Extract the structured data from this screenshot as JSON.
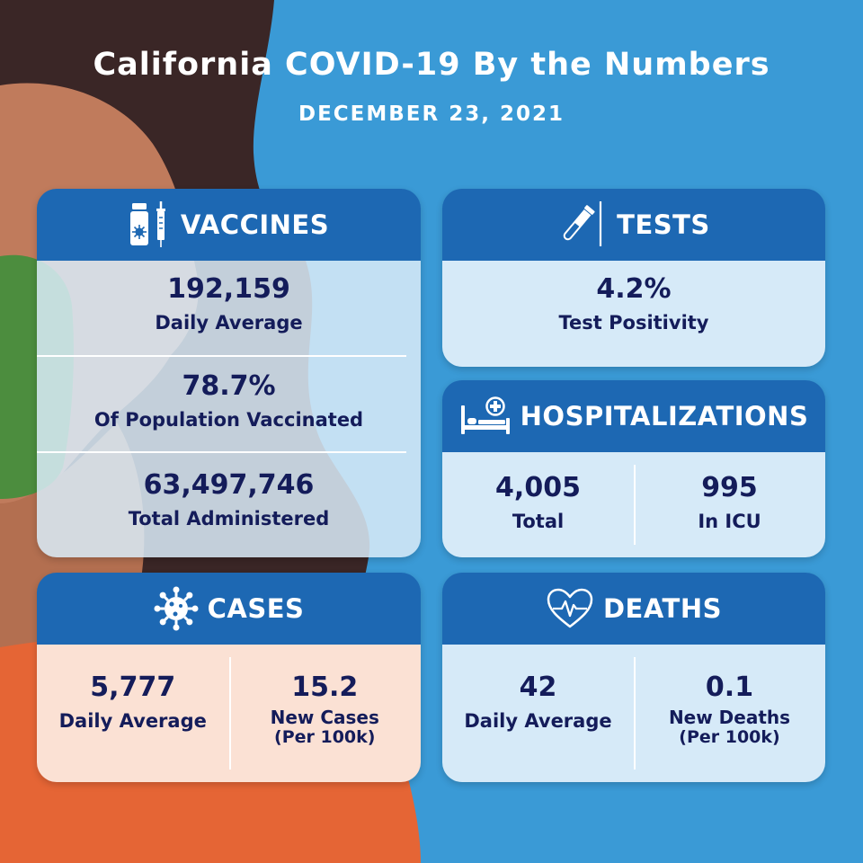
{
  "header": {
    "title": "California COVID-19 By the Numbers",
    "date": "DECEMBER 23, 2021"
  },
  "vaccines": {
    "heading": "VACCINES",
    "icon": "vaccine-vial-syringe-icon",
    "stats": [
      {
        "value": "192,159",
        "label": "Daily Average"
      },
      {
        "value": "78.7%",
        "label": "Of Population Vaccinated"
      },
      {
        "value": "63,497,746",
        "label": "Total Administered"
      }
    ]
  },
  "tests": {
    "heading": "TESTS",
    "icon": "test-tube-swab-icon",
    "value": "4.2%",
    "label": "Test Positivity"
  },
  "hospitalizations": {
    "heading": "HOSPITALIZATIONS",
    "icon": "hospital-bed-icon",
    "stats": [
      {
        "value": "4,005",
        "label": "Total"
      },
      {
        "value": "995",
        "label": "In ICU"
      }
    ]
  },
  "cases": {
    "heading": "CASES",
    "icon": "virus-icon",
    "stats": [
      {
        "value": "5,777",
        "label": "Daily Average",
        "sub": ""
      },
      {
        "value": "15.2",
        "label": "New Cases",
        "sub": "(Per 100k)"
      }
    ]
  },
  "deaths": {
    "heading": "DEATHS",
    "icon": "heart-pulse-icon",
    "stats": [
      {
        "value": "42",
        "label": "Daily Average",
        "sub": ""
      },
      {
        "value": "0.1",
        "label": "New Deaths",
        "sub": "(Per 100k)"
      }
    ]
  },
  "colors": {
    "background": "#3a9ad6",
    "header_band": "#1d68b3",
    "text_dark": "#141c5a",
    "hair": "#3a2626",
    "skin": "#c07b5c",
    "mask": "#4c8d3e",
    "shirt": "#e56535"
  }
}
